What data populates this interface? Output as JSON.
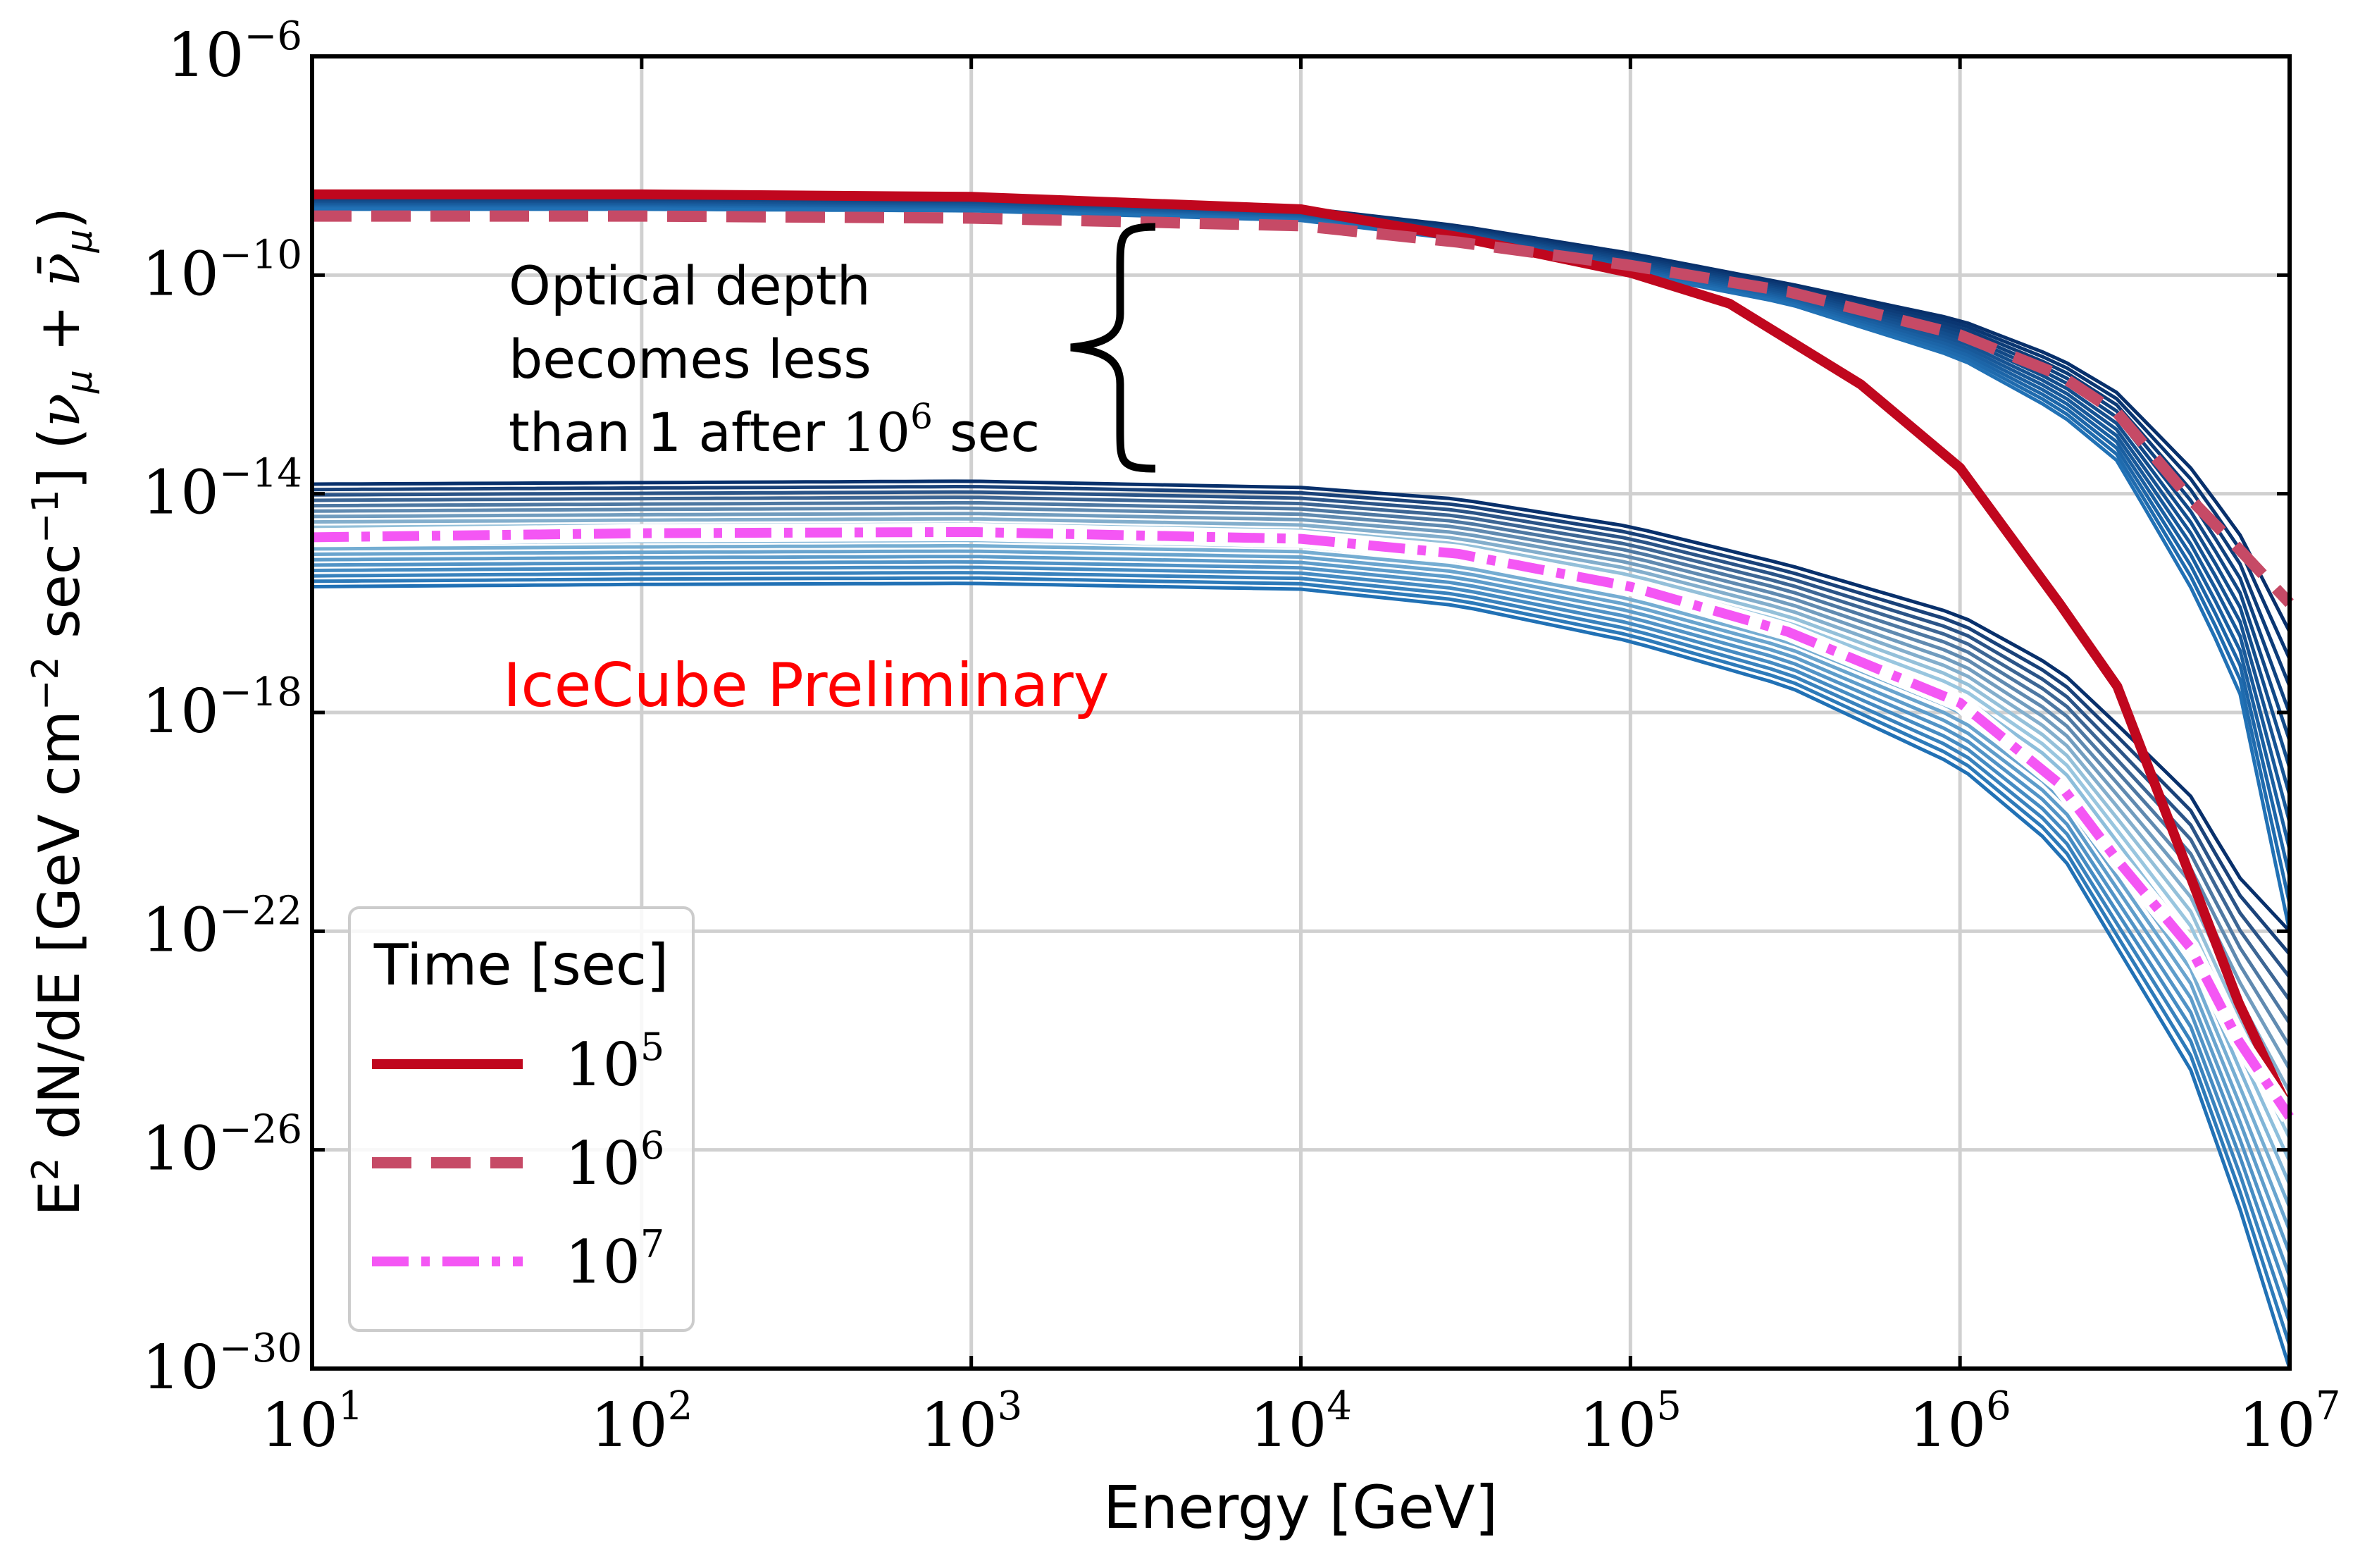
{
  "chart_data": {
    "type": "line",
    "xlabel": "Energy [GeV]",
    "ylabel": {
      "text": "E² dN/dE [GeV cm⁻² sec⁻¹] (ν_μ + ν̄_μ)",
      "E": "E",
      "E_exp": "2",
      "mid": " dN/dE [GeV cm",
      "cm_exp": "−2",
      "sec": " sec",
      "sec_exp": "−1",
      "tail": "] (",
      "nu": "ν",
      "mu": "μ",
      "plus": " + ",
      "nubar": "ν̄",
      "close": ")"
    },
    "x_scale": "log",
    "y_scale": "log",
    "xlim": [
      10,
      10000000
    ],
    "ylim": [
      1e-30,
      1e-06
    ],
    "x_ticks": [
      {
        "value": 10,
        "base": "10",
        "exp": "1"
      },
      {
        "value": 100,
        "base": "10",
        "exp": "2"
      },
      {
        "value": 1000,
        "base": "10",
        "exp": "3"
      },
      {
        "value": 10000,
        "base": "10",
        "exp": "4"
      },
      {
        "value": 100000,
        "base": "10",
        "exp": "5"
      },
      {
        "value": 1000000,
        "base": "10",
        "exp": "6"
      },
      {
        "value": 10000000,
        "base": "10",
        "exp": "7"
      }
    ],
    "y_ticks": [
      {
        "value": 1e-30,
        "base": "10",
        "exp": "−30"
      },
      {
        "value": 1e-26,
        "base": "10",
        "exp": "−26"
      },
      {
        "value": 1e-22,
        "base": "10",
        "exp": "−22"
      },
      {
        "value": 1e-18,
        "base": "10",
        "exp": "−18"
      },
      {
        "value": 1e-14,
        "base": "10",
        "exp": "−14"
      },
      {
        "value": 1e-10,
        "base": "10",
        "exp": "−10"
      },
      {
        "value": 1e-06,
        "base": "10",
        "exp": "−6"
      }
    ],
    "grid": true,
    "legend": {
      "title": "Time [sec]",
      "placement": "bottom-left",
      "entries": [
        {
          "base": "10",
          "exp": "5",
          "color": "#c0071e",
          "style": "solid"
        },
        {
          "base": "10",
          "exp": "6",
          "color": "#c64a66",
          "style": "dashed"
        },
        {
          "base": "10",
          "exp": "7",
          "color": "#f456f4",
          "style": "dashdot"
        }
      ]
    },
    "annotations": {
      "optical_depth": {
        "line1": "Optical depth",
        "line2": "becomes less",
        "line3_pre": "than 1 after ",
        "base": "10",
        "exp": "6",
        "line3_post": " sec"
      },
      "watermark": {
        "text": "IceCube Preliminary",
        "color": "#ff0000"
      }
    },
    "series": [
      {
        "name": "10^5",
        "color": "#c0071e",
        "style": "solid",
        "x": [
          10,
          100,
          1000,
          10000,
          30000,
          100000,
          200000,
          500000,
          1000000,
          2000000,
          3000000,
          5000000,
          7000000,
          10000000
        ],
        "y": [
          3e-09,
          3e-09,
          2.7e-09,
          1.6e-09,
          5e-10,
          1.1e-10,
          3e-11,
          1e-12,
          3e-14,
          1e-16,
          3e-18,
          1e-21,
          5e-24,
          5e-26
        ]
      },
      {
        "name": "10^6",
        "color": "#c64a66",
        "style": "dashed",
        "x": [
          10,
          100,
          1000,
          10000,
          30000,
          100000,
          300000,
          1000000,
          2000000,
          3000000,
          5000000,
          7000000,
          10000000
        ],
        "y": [
          1.2e-09,
          1.2e-09,
          1.1e-09,
          8e-10,
          4e-10,
          1.5e-10,
          5e-11,
          8e-12,
          1.5e-12,
          3e-13,
          8e-15,
          1e-15,
          1e-16
        ]
      },
      {
        "name": "10^7",
        "color": "#f456f4",
        "style": "dashdot",
        "x": [
          10,
          100,
          1000,
          10000,
          30000,
          100000,
          300000,
          1000000,
          2000000,
          3000000,
          5000000,
          7000000,
          10000000
        ],
        "y": [
          1.6e-15,
          1.9e-15,
          2e-15,
          1.5e-15,
          8e-16,
          2e-16,
          3e-17,
          1.5e-18,
          5e-20,
          2e-21,
          5e-23,
          1e-24,
          4e-26
        ]
      }
    ],
    "bands": [
      {
        "name": "upper",
        "color_dark": "#08306b",
        "color_light": "#2171b5",
        "count": 12,
        "x": [
          10,
          100,
          1000,
          10000,
          30000,
          100000,
          300000,
          1000000,
          2000000,
          3000000,
          5000000,
          7000000,
          10000000
        ],
        "top": [
          2.7e-09,
          2.7e-09,
          2.6e-09,
          1.7e-09,
          8e-10,
          2.5e-10,
          7e-11,
          1.5e-11,
          3e-12,
          7e-13,
          3e-14,
          2e-15,
          3e-17
        ],
        "bottom": [
          1.6e-09,
          1.6e-09,
          1.5e-09,
          1e-09,
          4.5e-10,
          1.1e-10,
          3e-11,
          3e-12,
          3e-13,
          4e-14,
          2e-16,
          3e-18,
          1e-22
        ]
      },
      {
        "name": "lower",
        "color_dark": "#08306b",
        "color_light": "#2171b5",
        "color_mid": "#9ecae1",
        "count": 20,
        "x": [
          10,
          100,
          1000,
          10000,
          30000,
          100000,
          300000,
          1000000,
          2000000,
          3000000,
          5000000,
          7000000,
          10000000
        ],
        "top": [
          1.5e-14,
          1.6e-14,
          1.7e-14,
          1.3e-14,
          8e-15,
          2.5e-15,
          5e-16,
          6e-17,
          6e-18,
          6e-19,
          3e-20,
          1e-21,
          1e-22
        ],
        "bottom": [
          2e-16,
          2.2e-16,
          2.3e-16,
          1.8e-16,
          9e-17,
          2e-17,
          3e-18,
          1e-19,
          3e-21,
          5e-23,
          3e-25,
          1e-27,
          1e-30
        ]
      }
    ]
  }
}
